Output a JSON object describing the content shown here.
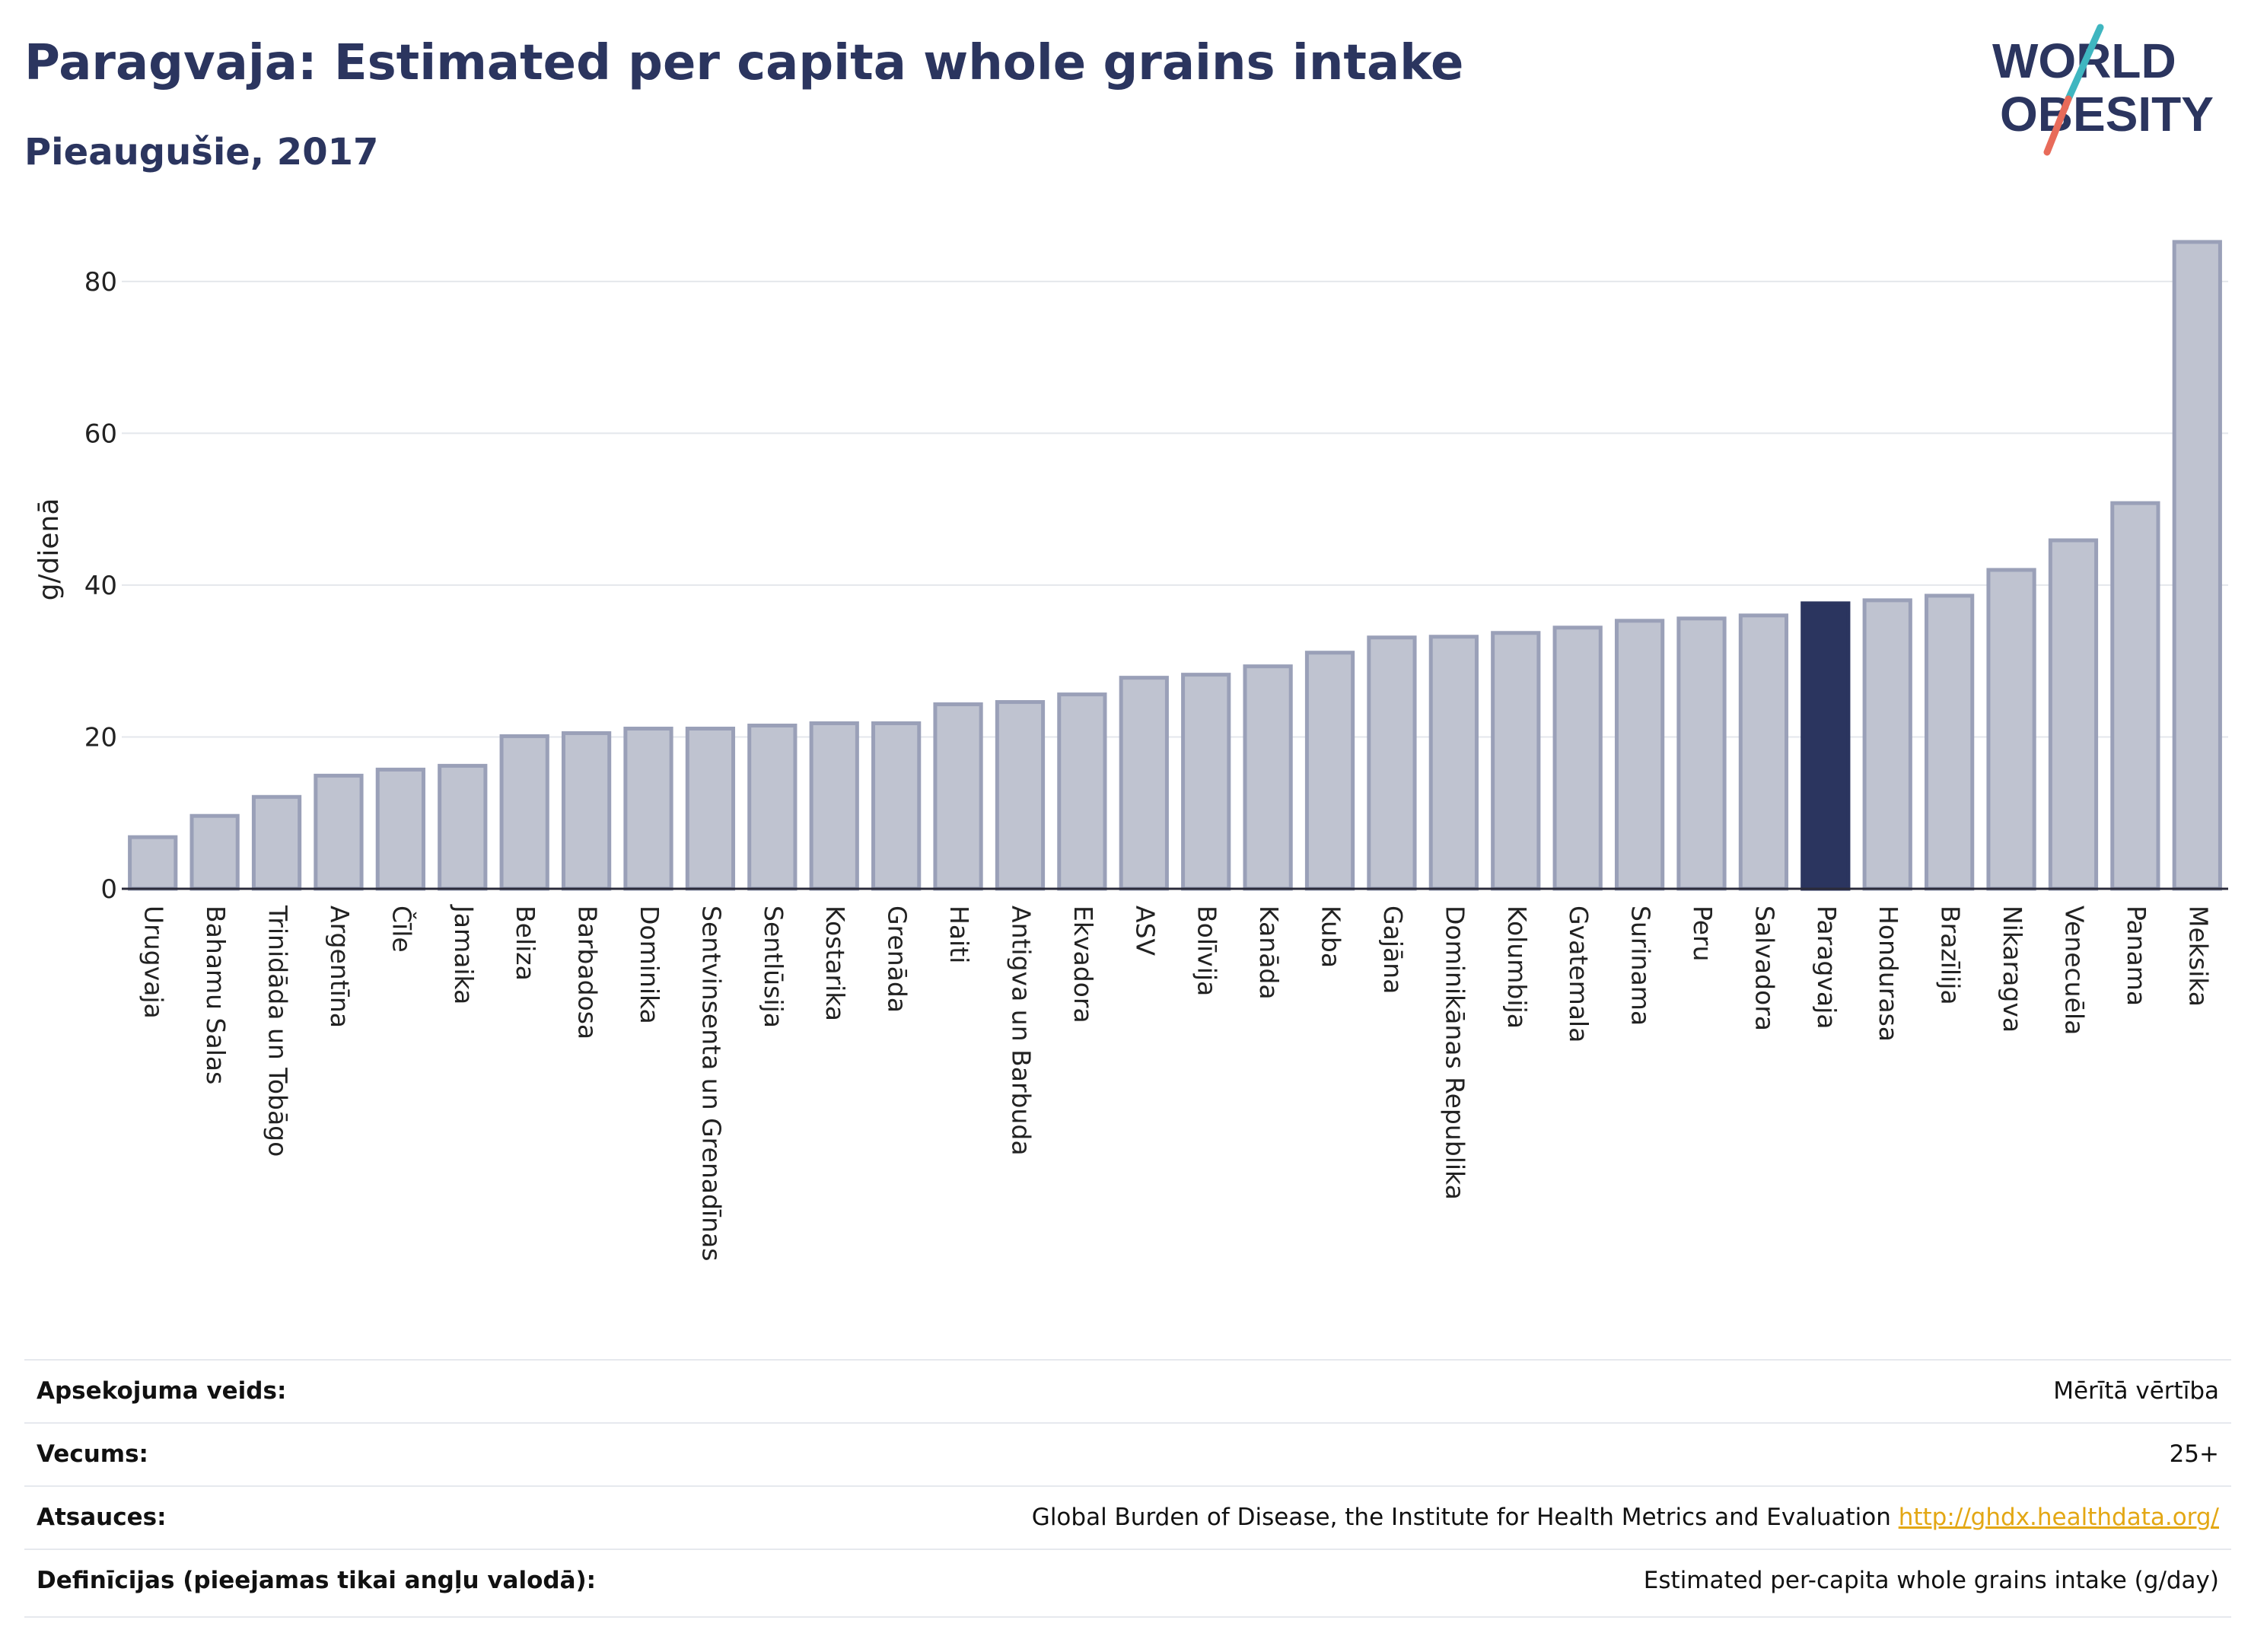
{
  "header": {
    "title": "Paragvaja: Estimated per capita whole grains intake",
    "subtitle": "Pieaugušie, 2017"
  },
  "logo": {
    "line1": "WORLD",
    "line2": "OBESITY"
  },
  "chart_data": {
    "type": "bar",
    "ylabel": "g/dienā",
    "ylim": [
      0,
      88
    ],
    "yticks": [
      0,
      20,
      40,
      60,
      80
    ],
    "grid": true,
    "highlight": "Paragvaja",
    "colors": {
      "bar": "#bfc3d0",
      "bar_border": "#9aa0b8",
      "highlight": "#2b355f",
      "grid": "#e4e7ec"
    },
    "categories": [
      "Urugvaja",
      "Bahamu Salas",
      "Trinidāda un Tobāgo",
      "Argentīna",
      "Čīle",
      "Jamaika",
      "Beliza",
      "Barbadosa",
      "Dominika",
      "Sentvinsenta un Grenadīnas",
      "Sentlūsija",
      "Kostarika",
      "Grenāda",
      "Haiti",
      "Antigva un Barbuda",
      "Ekvadora",
      "ASV",
      "Bolīvija",
      "Kanāda",
      "Kuba",
      "Gajāna",
      "Dominikānas Republika",
      "Kolumbija",
      "Gvatemala",
      "Surinama",
      "Peru",
      "Salvadora",
      "Paragvaja",
      "Hondurasa",
      "Brazīlija",
      "Nikaragva",
      "Venecuēla",
      "Panama",
      "Meksika"
    ],
    "values": [
      6.8,
      9.6,
      12.1,
      14.9,
      15.7,
      16.2,
      20.1,
      20.5,
      21.1,
      21.1,
      21.5,
      21.8,
      21.8,
      24.3,
      24.6,
      25.6,
      27.8,
      28.2,
      29.3,
      31.1,
      33.1,
      33.2,
      33.7,
      34.4,
      35.3,
      35.6,
      36.0,
      37.6,
      38.0,
      38.6,
      42.0,
      45.9,
      50.8,
      85.2
    ]
  },
  "info": {
    "rows": [
      {
        "key": "Apsekojuma veids:",
        "value": "Mērītā vērtība"
      },
      {
        "key": "Vecums:",
        "value": "25+"
      },
      {
        "key": "Atsauces:",
        "value": "Global Burden of Disease, the Institute for Health Metrics and Evaluation",
        "link": "http://ghdx.healthdata.org/"
      },
      {
        "key": "Definīcijas (pieejamas tikai angļu valodā):",
        "value": "Estimated per-capita whole grains intake (g/day)"
      }
    ]
  }
}
